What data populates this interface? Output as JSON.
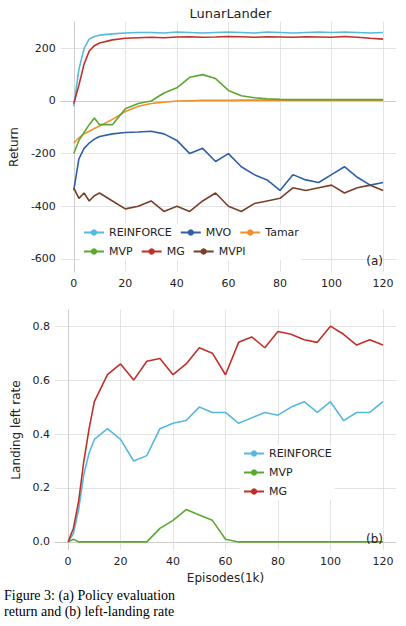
{
  "chart_data": [
    {
      "type": "line",
      "title": "LunarLander",
      "y_label": "Return",
      "annotation": "(a)",
      "x": [
        0,
        2,
        4,
        6,
        8,
        10,
        15,
        20,
        25,
        30,
        35,
        40,
        45,
        50,
        55,
        60,
        65,
        70,
        75,
        80,
        85,
        90,
        95,
        100,
        105,
        110,
        115,
        120
      ],
      "xlim": [
        -5,
        125
      ],
      "xticks": [
        0,
        20,
        40,
        60,
        80,
        100,
        120
      ],
      "ylim": [
        -650,
        300
      ],
      "yticks": [
        -600,
        -400,
        -200,
        0,
        200
      ],
      "grid": true,
      "legend": "lower center",
      "series": [
        {
          "name": "REINFORCE",
          "color": "#56b9dd",
          "values": [
            -20,
            120,
            200,
            235,
            245,
            250,
            255,
            258,
            260,
            260,
            258,
            262,
            260,
            258,
            260,
            262,
            260,
            258,
            262,
            260,
            258,
            260,
            262,
            260,
            262,
            260,
            258,
            260
          ]
        },
        {
          "name": "MVO",
          "color": "#2f5fa6",
          "values": [
            -340,
            -220,
            -180,
            -160,
            -145,
            -135,
            -125,
            -120,
            -118,
            -115,
            -125,
            -150,
            -200,
            -180,
            -230,
            -200,
            -250,
            -280,
            -300,
            -340,
            -280,
            -300,
            -310,
            -280,
            -250,
            -290,
            -320,
            -310
          ]
        },
        {
          "name": "Tamar",
          "color": "#f28e2b",
          "values": [
            -160,
            -140,
            -125,
            -115,
            -105,
            -95,
            -70,
            -40,
            -20,
            -10,
            -5,
            0,
            1,
            2,
            2,
            2,
            3,
            3,
            3,
            3,
            3,
            3,
            3,
            3,
            3,
            3,
            3,
            3
          ]
        },
        {
          "name": "MVP",
          "color": "#5aa832",
          "values": [
            -200,
            -150,
            -120,
            -90,
            -65,
            -90,
            -90,
            -30,
            -10,
            0,
            30,
            50,
            90,
            100,
            85,
            40,
            20,
            12,
            8,
            6,
            5,
            5,
            5,
            5,
            5,
            5,
            5,
            5
          ]
        },
        {
          "name": "MG",
          "color": "#c0302b",
          "values": [
            -10,
            60,
            140,
            190,
            210,
            220,
            232,
            238,
            240,
            242,
            240,
            243,
            244,
            242,
            243,
            245,
            244,
            242,
            244,
            243,
            242,
            244,
            243,
            242,
            245,
            242,
            238,
            235
          ]
        },
        {
          "name": "MVPI",
          "color": "#7a3e2b",
          "values": [
            -330,
            -370,
            -350,
            -380,
            -360,
            -350,
            -380,
            -410,
            -400,
            -380,
            -420,
            -400,
            -420,
            -380,
            -350,
            -400,
            -420,
            -390,
            -380,
            -370,
            -330,
            -340,
            -330,
            -320,
            -350,
            -330,
            -320,
            -340
          ]
        }
      ]
    },
    {
      "type": "line",
      "y_label": "Landing left rate",
      "x_label": "Episodes(1k)",
      "annotation": "(b)",
      "x": [
        0,
        2,
        4,
        6,
        8,
        10,
        15,
        20,
        25,
        30,
        35,
        40,
        45,
        50,
        55,
        60,
        65,
        70,
        75,
        80,
        85,
        90,
        95,
        100,
        105,
        110,
        115,
        120
      ],
      "xlim": [
        -5,
        125
      ],
      "xticks": [
        0,
        20,
        40,
        60,
        80,
        100,
        120
      ],
      "ylim": [
        -0.03,
        0.86
      ],
      "yticks": [
        {
          "value": 0,
          "label": "0.0"
        },
        0.2,
        0.4,
        0.6,
        0.8
      ],
      "grid": true,
      "legend": "lower right",
      "series": [
        {
          "name": "REINFORCE",
          "color": "#56b9dd",
          "values": [
            0,
            0.03,
            0.12,
            0.25,
            0.33,
            0.38,
            0.42,
            0.38,
            0.3,
            0.32,
            0.42,
            0.44,
            0.45,
            0.5,
            0.48,
            0.48,
            0.44,
            0.46,
            0.48,
            0.47,
            0.5,
            0.52,
            0.48,
            0.52,
            0.45,
            0.48,
            0.48,
            0.52
          ]
        },
        {
          "name": "MVP",
          "color": "#5aa832",
          "values": [
            0,
            0.01,
            0,
            0,
            0,
            0,
            0,
            0,
            0,
            0,
            0.05,
            0.08,
            0.12,
            0.1,
            0.08,
            0.01,
            0,
            0,
            0,
            0,
            0,
            0,
            0,
            0,
            0,
            0,
            0,
            0
          ]
        },
        {
          "name": "MG",
          "color": "#c0302b",
          "values": [
            0,
            0.05,
            0.15,
            0.3,
            0.42,
            0.52,
            0.62,
            0.66,
            0.6,
            0.67,
            0.68,
            0.62,
            0.66,
            0.72,
            0.7,
            0.62,
            0.74,
            0.76,
            0.72,
            0.78,
            0.77,
            0.75,
            0.74,
            0.8,
            0.77,
            0.73,
            0.75,
            0.73
          ]
        }
      ]
    }
  ],
  "caption": [
    "Figure 3: (a) Policy evaluation",
    "return and (b) left-landing rate"
  ]
}
